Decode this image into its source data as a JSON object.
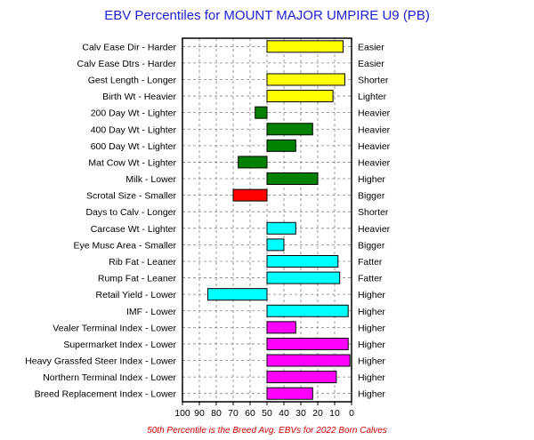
{
  "chart_data": {
    "type": "bar",
    "orientation": "horizontal",
    "title": "EBV Percentiles for MOUNT MAJOR UMPIRE U9 (PB)",
    "footnote": "50th Percentile is the Breed Avg. EBVs for 2022 Born Calves",
    "x_ticks": [
      "100",
      "90",
      "80",
      "70",
      "60",
      "50",
      "40",
      "30",
      "20",
      "10",
      "0"
    ],
    "xlim": [
      100,
      0
    ],
    "baseline": 50,
    "grid": true,
    "colors": {
      "calving": "#ffff00",
      "growth": "#008000",
      "fertility": "#ff0000",
      "carcase": "#00ffff",
      "index": "#ff00ff"
    },
    "rows": [
      {
        "left": "Calv Ease Dir - Harder",
        "right": "Easier",
        "value": 5,
        "group": "calving"
      },
      {
        "left": "Calv Ease Dtrs - Harder",
        "right": "Easier",
        "value": null,
        "group": "calving"
      },
      {
        "left": "Gest Length - Longer",
        "right": "Shorter",
        "value": 4,
        "group": "calving"
      },
      {
        "left": "Birth Wt - Heavier",
        "right": "Lighter",
        "value": 11,
        "group": "calving"
      },
      {
        "left": "200 Day Wt - Lighter",
        "right": "Heavier",
        "value": 57,
        "group": "growth"
      },
      {
        "left": "400 Day Wt - Lighter",
        "right": "Heavier",
        "value": 23,
        "group": "growth"
      },
      {
        "left": "600 Day Wt - Lighter",
        "right": "Heavier",
        "value": 33,
        "group": "growth"
      },
      {
        "left": "Mat Cow Wt - Lighter",
        "right": "Heavier",
        "value": 67,
        "group": "growth"
      },
      {
        "left": "Milk - Lower",
        "right": "Higher",
        "value": 20,
        "group": "growth"
      },
      {
        "left": "Scrotal Size - Smaller",
        "right": "Bigger",
        "value": 70,
        "group": "fertility"
      },
      {
        "left": "Days to Calv - Longer",
        "right": "Shorter",
        "value": null,
        "group": "fertility"
      },
      {
        "left": "Carcase Wt - Lighter",
        "right": "Heavier",
        "value": 33,
        "group": "carcase"
      },
      {
        "left": "Eye Musc Area - Smaller",
        "right": "Bigger",
        "value": 40,
        "group": "carcase"
      },
      {
        "left": "Rib Fat - Leaner",
        "right": "Fatter",
        "value": 8,
        "group": "carcase"
      },
      {
        "left": "Rump Fat - Leaner",
        "right": "Fatter",
        "value": 7,
        "group": "carcase"
      },
      {
        "left": "Retail Yield - Lower",
        "right": "Higher",
        "value": 85,
        "group": "carcase"
      },
      {
        "left": "IMF - Lower",
        "right": "Higher",
        "value": 2,
        "group": "carcase"
      },
      {
        "left": "Vealer Terminal Index - Lower",
        "right": "Higher",
        "value": 33,
        "group": "index"
      },
      {
        "left": "Supermarket Index - Lower",
        "right": "Higher",
        "value": 2,
        "group": "index"
      },
      {
        "left": "Heavy Grassfed Steer Index - Lower",
        "right": "Higher",
        "value": 1,
        "group": "index"
      },
      {
        "left": "Northern Terminal Index - Lower",
        "right": "Higher",
        "value": 9,
        "group": "index"
      },
      {
        "left": "Breed Replacement Index - Lower",
        "right": "Higher",
        "value": 23,
        "group": "index"
      }
    ]
  }
}
